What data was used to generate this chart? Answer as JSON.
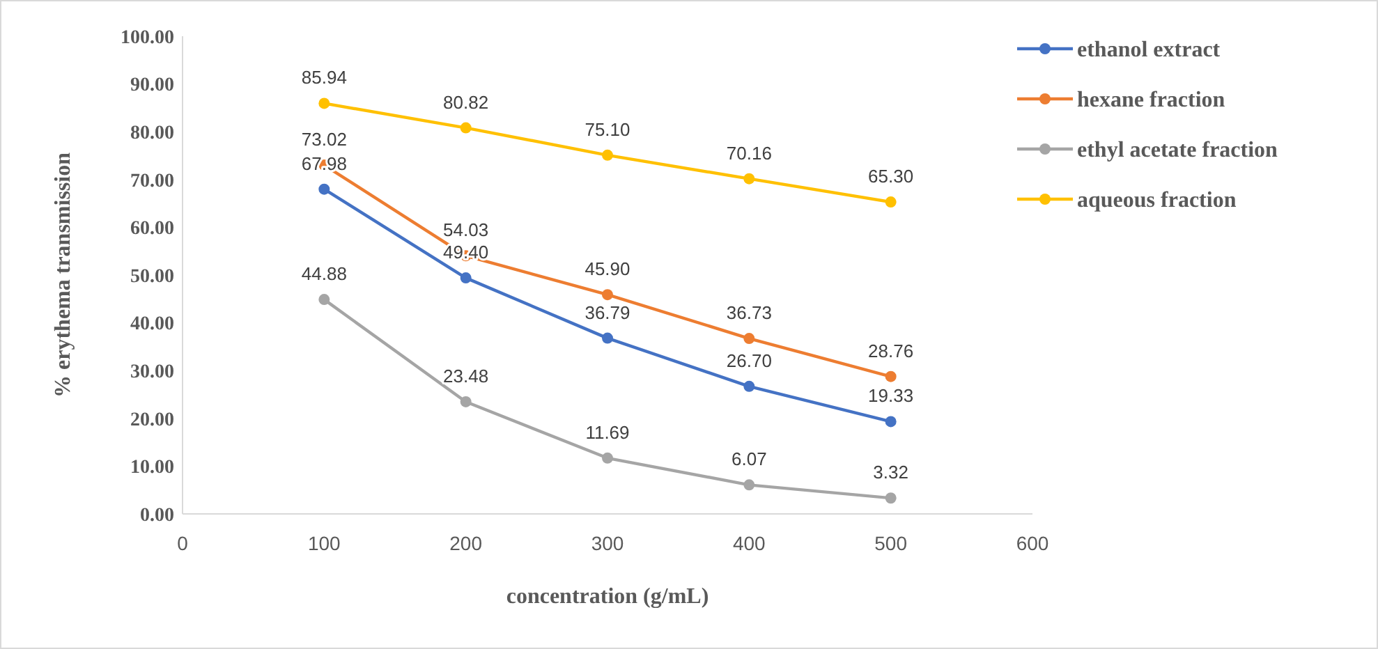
{
  "chart_data": {
    "type": "line",
    "xlabel": "concentration (g/mL)",
    "ylabel": "% erythema transmission",
    "x": [
      100,
      200,
      300,
      400,
      500
    ],
    "series": [
      {
        "name": "ethanol extract",
        "color": "#4472c4",
        "values": [
          67.98,
          49.4,
          36.79,
          26.7,
          19.33
        ],
        "value_labels": [
          "67.98",
          "49.40",
          "36.79",
          "26.70",
          "19.33"
        ]
      },
      {
        "name": "hexane fraction",
        "color": "#ed7d31",
        "values": [
          73.02,
          54.03,
          45.9,
          36.73,
          28.76
        ],
        "value_labels": [
          "73.02",
          "54.03",
          "45.90",
          "36.73",
          "28.76"
        ]
      },
      {
        "name": "ethyl acetate fraction",
        "color": "#a5a5a5",
        "values": [
          44.88,
          23.48,
          11.69,
          6.07,
          3.32
        ],
        "value_labels": [
          "44.88",
          "23.48",
          "11.69",
          "6.07",
          "3.32"
        ]
      },
      {
        "name": "aqueous fraction",
        "color": "#ffc000",
        "values": [
          85.94,
          80.82,
          75.1,
          70.16,
          65.3
        ],
        "value_labels": [
          "85.94",
          "80.82",
          "75.10",
          "70.16",
          "65.30"
        ]
      }
    ],
    "xlim": [
      0,
      600
    ],
    "xticks": [
      0,
      100,
      200,
      300,
      400,
      500,
      600
    ],
    "ylim": [
      0,
      100
    ],
    "yticks": [
      {
        "value": 0,
        "label": "0.00"
      },
      {
        "value": 10,
        "label": "10.00"
      },
      {
        "value": 20,
        "label": "20.00"
      },
      {
        "value": 30,
        "label": "30.00"
      },
      {
        "value": 40,
        "label": "40.00"
      },
      {
        "value": 50,
        "label": "50.00"
      },
      {
        "value": 60,
        "label": "60.00"
      },
      {
        "value": 70,
        "label": "70.00"
      },
      {
        "value": 80,
        "label": "80.00"
      },
      {
        "value": 90,
        "label": "90.00"
      },
      {
        "value": 100,
        "label": "100.00"
      }
    ],
    "grid": false,
    "legend": "right",
    "marker": "circle",
    "line_style": "solid"
  }
}
